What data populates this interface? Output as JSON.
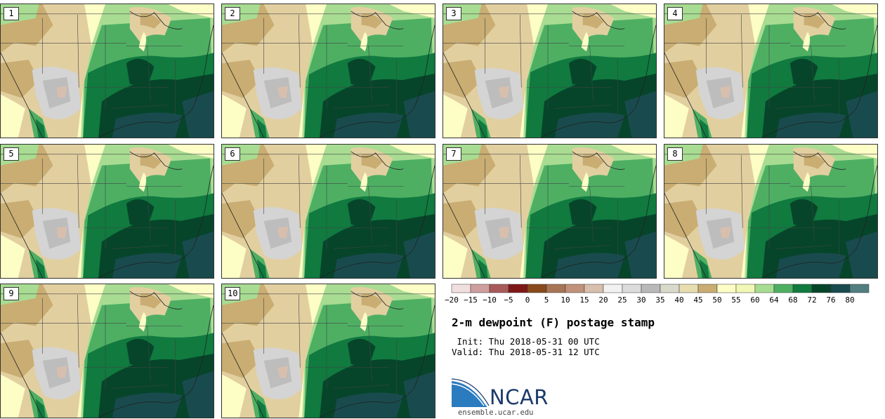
{
  "chart_data": {
    "type": "heatmap",
    "title": "2-m dewpoint (F) postage stamp",
    "init": "Init: Thu 2018-05-31 00 UTC",
    "valid": "Valid: Thu 2018-05-31 12 UTC",
    "units": "F",
    "members": [
      "1",
      "2",
      "3",
      "4",
      "5",
      "6",
      "7",
      "8",
      "9",
      "10"
    ],
    "colorbar": {
      "ticks": [
        -20,
        -15,
        -10,
        -5,
        0,
        5,
        10,
        15,
        20,
        25,
        30,
        35,
        40,
        45,
        50,
        55,
        60,
        64,
        68,
        72,
        76,
        80
      ],
      "colors": [
        "#f1dfdf",
        "#cf9e9e",
        "#a85a5a",
        "#7e1818",
        "#884a1c",
        "#a77555",
        "#c0937a",
        "#d8bfad",
        "#f1f1f1",
        "#dcdcdc",
        "#b9b9b9",
        "#d9d9cc",
        "#e7ddaf",
        "#c9ad72",
        "#fdfdc6",
        "#f1f7b5",
        "#a8dc92",
        "#4eaf63",
        "#107a3f",
        "#06452a",
        "#194b4e",
        "#517e80"
      ]
    }
  },
  "branding": {
    "logo_text": "NCAR",
    "url": "ensemble.ucar.edu"
  }
}
